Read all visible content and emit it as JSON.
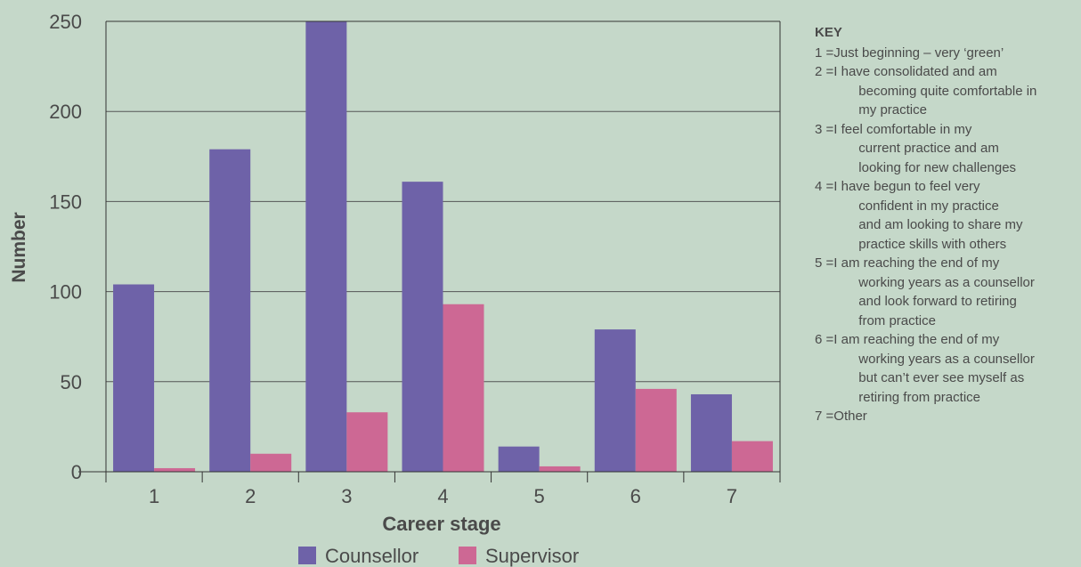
{
  "chart_data": {
    "type": "bar",
    "categories": [
      "1",
      "2",
      "3",
      "4",
      "5",
      "6",
      "7"
    ],
    "series": [
      {
        "name": "Counsellor",
        "color": "#6e62a8",
        "values": [
          104,
          179,
          250,
          161,
          14,
          79,
          43
        ]
      },
      {
        "name": "Supervisor",
        "color": "#cd6894",
        "values": [
          2,
          10,
          33,
          93,
          3,
          46,
          17
        ]
      }
    ],
    "title": "",
    "xlabel": "Career stage",
    "ylabel": "Number",
    "ylim": [
      0,
      250
    ],
    "yticks": [
      0,
      50,
      100,
      150,
      200,
      250
    ],
    "grid": "horizontal",
    "legend_position": "bottom-center"
  },
  "key": {
    "title": "KEY",
    "items": [
      {
        "num": "1 = ",
        "lines": [
          "Just beginning – very ‘green’"
        ]
      },
      {
        "num": "2 = ",
        "lines": [
          "I have consolidated and am",
          "becoming quite comfortable in",
          "my practice"
        ]
      },
      {
        "num": "3 = ",
        "lines": [
          "I feel comfortable in my",
          "current practice and am",
          "looking for new challenges"
        ]
      },
      {
        "num": "4 = ",
        "lines": [
          "I have begun to feel very",
          "confident in my practice",
          "and am looking to share my",
          "practice skills with others"
        ]
      },
      {
        "num": "5 = ",
        "lines": [
          "I am reaching the end of my",
          "working years as a counsellor",
          "and look forward to retiring",
          "from practice"
        ]
      },
      {
        "num": "6 = ",
        "lines": [
          "I am reaching the end of my",
          "working years as a counsellor",
          "but can’t ever see myself as",
          "retiring from practice"
        ]
      },
      {
        "num": "7 = ",
        "lines": [
          "Other"
        ]
      }
    ]
  }
}
